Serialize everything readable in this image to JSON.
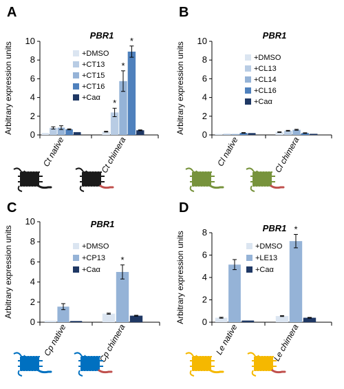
{
  "colors": {
    "black_receptor": "#1a1a1a",
    "green_receptor": "#77933c",
    "blue_receptor": "#0070c0",
    "yellow_receptor": "#f5b800",
    "red_tail": "#c0504d"
  },
  "chart_data": [
    {
      "panel": "A",
      "type": "bar",
      "title": "PBR1",
      "ylabel": "Arbitrary expression units",
      "ylim": [
        0,
        10
      ],
      "yticks": [
        0,
        2,
        4,
        6,
        8,
        10
      ],
      "categories": [
        {
          "prefix": "Ct",
          "suffix": " native"
        },
        {
          "prefix": "Ct",
          "suffix": " chimera"
        }
      ],
      "receptor_color": "#1a1a1a",
      "series": [
        {
          "name": "+DMSO",
          "color": "#dbe5f1",
          "values": [
            0.22,
            0.35
          ],
          "errors": [
            0.0,
            0.04
          ],
          "sig": [
            false,
            false
          ]
        },
        {
          "name": "+CT13",
          "color": "#b8cce4",
          "values": [
            0.75,
            2.4
          ],
          "errors": [
            0.12,
            0.45
          ],
          "sig": [
            false,
            true
          ]
        },
        {
          "name": "+CT15",
          "color": "#95b3d7",
          "values": [
            0.78,
            5.75
          ],
          "errors": [
            0.2,
            1.1
          ],
          "sig": [
            false,
            true
          ]
        },
        {
          "name": "+CT16",
          "color": "#4f81bd",
          "values": [
            0.6,
            8.9
          ],
          "errors": [
            0.05,
            0.6
          ],
          "sig": [
            false,
            true
          ]
        },
        {
          "name": "+Caα",
          "color": "#1f3864",
          "values": [
            0.3,
            0.5
          ],
          "errors": [
            0.0,
            0.04
          ],
          "sig": [
            false,
            false
          ]
        }
      ]
    },
    {
      "panel": "B",
      "type": "bar",
      "title": "PBR1",
      "ylabel": "Arbitrary expression units",
      "ylim": [
        0,
        10
      ],
      "yticks": [
        0,
        2,
        4,
        6,
        8,
        10
      ],
      "categories": [
        {
          "prefix": "Cl",
          "suffix": " native"
        },
        {
          "prefix": "Cl",
          "suffix": " chimera"
        }
      ],
      "receptor_color": "#77933c",
      "series": [
        {
          "name": "+DMSO",
          "color": "#dbe5f1",
          "values": [
            0.1,
            0.3
          ],
          "errors": [
            0.0,
            0.03
          ],
          "sig": [
            false,
            false
          ]
        },
        {
          "name": "+CL13",
          "color": "#b8cce4",
          "values": [
            0.12,
            0.45
          ],
          "errors": [
            0.0,
            0.04
          ],
          "sig": [
            false,
            false
          ]
        },
        {
          "name": "+CL14",
          "color": "#95b3d7",
          "values": [
            0.1,
            0.55
          ],
          "errors": [
            0.0,
            0.05
          ],
          "sig": [
            false,
            false
          ]
        },
        {
          "name": "+CL16",
          "color": "#4f81bd",
          "values": [
            0.22,
            0.2
          ],
          "errors": [
            0.03,
            0.03
          ],
          "sig": [
            false,
            false
          ]
        },
        {
          "name": "+Caα",
          "color": "#1f3864",
          "values": [
            0.2,
            0.12
          ],
          "errors": [
            0.0,
            0.0
          ],
          "sig": [
            false,
            false
          ]
        }
      ]
    },
    {
      "panel": "C",
      "type": "bar",
      "title": "PBR1",
      "ylabel": "Arbitrary expression units",
      "ylim": [
        0,
        10
      ],
      "yticks": [
        0,
        2,
        4,
        6,
        8,
        10
      ],
      "categories": [
        {
          "prefix": "Cp",
          "suffix": " native"
        },
        {
          "prefix": "Cp",
          "suffix": " chimera"
        }
      ],
      "receptor_color": "#0070c0",
      "series": [
        {
          "name": "+DMSO",
          "color": "#dbe5f1",
          "values": [
            0.15,
            0.85
          ],
          "errors": [
            0.0,
            0.05
          ],
          "sig": [
            false,
            false
          ]
        },
        {
          "name": "+CP13",
          "color": "#95b3d7",
          "values": [
            1.55,
            5.0
          ],
          "errors": [
            0.3,
            0.7
          ],
          "sig": [
            false,
            true
          ]
        },
        {
          "name": "+Caα",
          "color": "#1f3864",
          "values": [
            0.12,
            0.65
          ],
          "errors": [
            0.0,
            0.04
          ],
          "sig": [
            false,
            false
          ]
        }
      ]
    },
    {
      "panel": "D",
      "type": "bar",
      "title": "PBR1",
      "ylabel": "Arbitrary expression units",
      "ylim": [
        0,
        8
      ],
      "yticks": [
        0,
        2,
        4,
        6,
        8
      ],
      "categories": [
        {
          "prefix": "Le",
          "suffix": " native"
        },
        {
          "prefix": "Le",
          "suffix": " chimera"
        }
      ],
      "receptor_color": "#f5b800",
      "series": [
        {
          "name": "+DMSO",
          "color": "#dbe5f1",
          "values": [
            0.4,
            0.55
          ],
          "errors": [
            0.04,
            0.04
          ],
          "sig": [
            false,
            false
          ]
        },
        {
          "name": "+LE13",
          "color": "#95b3d7",
          "values": [
            5.15,
            7.25
          ],
          "errors": [
            0.45,
            0.6
          ],
          "sig": [
            false,
            true
          ]
        },
        {
          "name": "+Caα",
          "color": "#1f3864",
          "values": [
            0.15,
            0.4
          ],
          "errors": [
            0.0,
            0.03
          ],
          "sig": [
            false,
            false
          ]
        }
      ]
    }
  ]
}
